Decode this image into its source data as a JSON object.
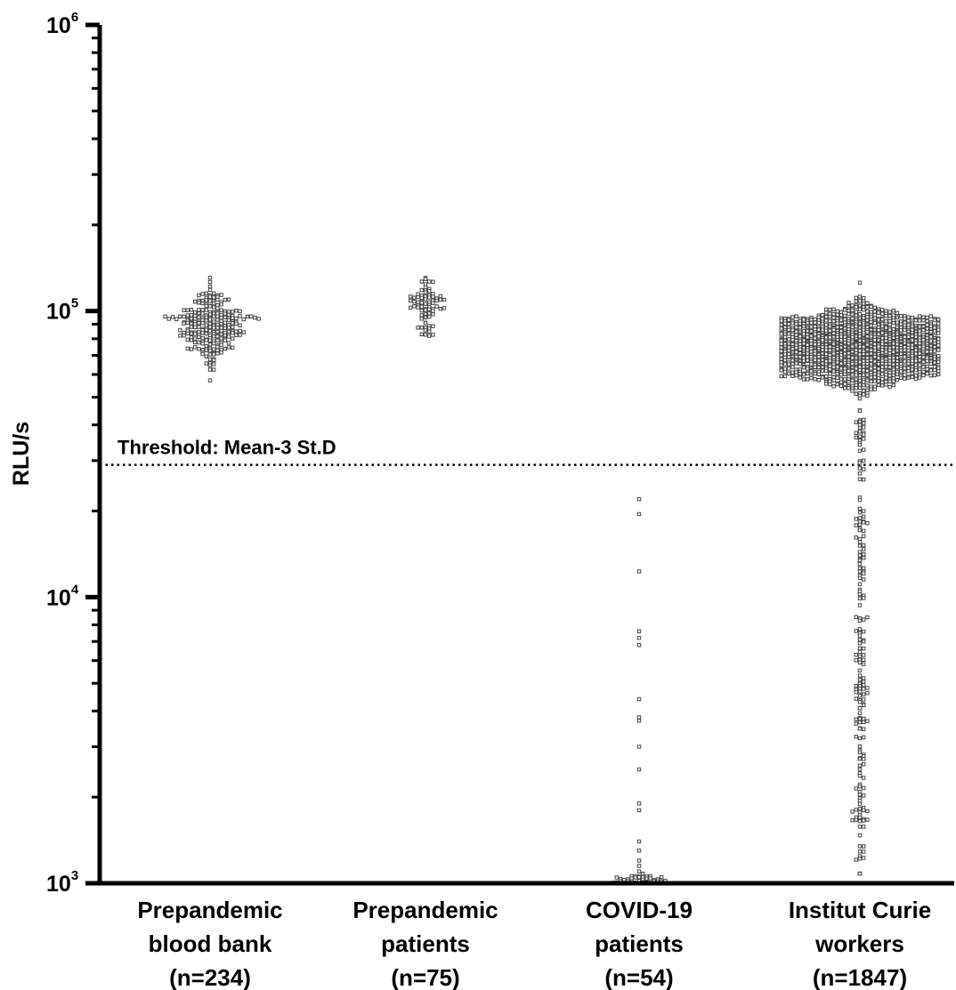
{
  "chart_data": {
    "type": "scatter",
    "subtype": "beeswarm",
    "ylabel": "RLU/s",
    "yscale": "log",
    "ylim": [
      1000,
      1000000
    ],
    "yticks": [
      {
        "value": 1000,
        "base": "10",
        "exp": "3"
      },
      {
        "value": 10000,
        "base": "10",
        "exp": "4"
      },
      {
        "value": 100000,
        "base": "10",
        "exp": "5"
      },
      {
        "value": 1000000,
        "base": "10",
        "exp": "6"
      }
    ],
    "threshold": {
      "value": 29000,
      "label": "Threshold: Mean-3 St.D"
    },
    "categories": [
      {
        "lines": [
          "Prepandemic",
          "blood bank",
          "(n=234)"
        ],
        "n": 234,
        "approx_min": 50000,
        "approx_max": 165000,
        "approx_center": 88000
      },
      {
        "lines": [
          "Prepandemic",
          "patients",
          "(n=75)"
        ],
        "n": 75,
        "approx_min": 62000,
        "approx_max": 155000,
        "approx_center": 105000
      },
      {
        "lines": [
          "COVID-19",
          "patients",
          "(n=54)"
        ],
        "n": 54,
        "approx_min": 1000,
        "approx_max": 22000,
        "visible_values": [
          22000,
          19500,
          12300,
          7600,
          7200,
          6800,
          4400,
          3800,
          3700,
          3000,
          2500,
          1900,
          1800,
          1400,
          1300,
          1200,
          1150,
          1100,
          1080,
          1050,
          1030,
          1020,
          1010,
          1005
        ]
      },
      {
        "lines": [
          "Institut Curie",
          "workers",
          "(n=1847)"
        ],
        "n": 1847,
        "approx_min": 1050,
        "approx_max": 135000,
        "approx_center": 75000
      }
    ]
  }
}
